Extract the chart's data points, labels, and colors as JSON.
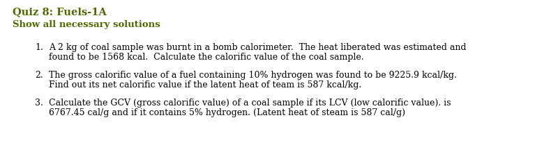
{
  "title": "Quiz 8: Fuels-1A",
  "subtitle": "Show all necessary solutions",
  "title_color": "#4d6b00",
  "subtitle_color": "#4d6b00",
  "background_color": "#ffffff",
  "items": [
    {
      "num": "1.",
      "line1": "A 2 kg of coal sample was burnt in a bomb calorimeter.  The heat liberated was estimated and",
      "line2": "found to be 1568 kcal.  Calculate the calorific value of the coal sample."
    },
    {
      "num": "2.",
      "line1": "The gross calorific value of a fuel containing 10% hydrogen was found to be 9225.9 kcal/kg.",
      "line2": "Find out its net calorific value if the latent heat of team is 587 kcal/kg."
    },
    {
      "num": "3.",
      "line1": "Calculate the GCV (gross calorific value) of a coal sample if its LCV (low calorific value). is",
      "line2": "6767.45 cal/g and if it contains 5% hydrogen. (Latent heat of steam is 587 cal/g)"
    }
  ],
  "title_fontsize": 10.5,
  "subtitle_fontsize": 9.5,
  "body_fontsize": 9.0,
  "text_color": "#000000",
  "font_family": "serif",
  "fig_width": 7.77,
  "fig_height": 2.09,
  "dpi": 100
}
